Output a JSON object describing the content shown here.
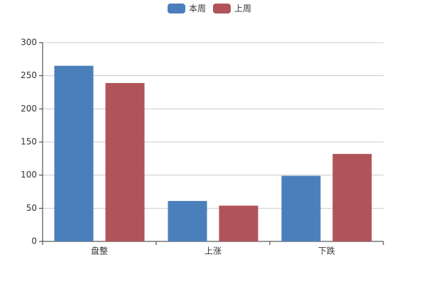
{
  "chart_data": {
    "type": "bar",
    "categories": [
      "盘整",
      "上涨",
      "下跌"
    ],
    "series": [
      {
        "name": "本周",
        "color": "#4b7fbb",
        "values": [
          265,
          61,
          99
        ]
      },
      {
        "name": "上周",
        "color": "#b05459",
        "values": [
          239,
          54,
          132
        ]
      }
    ],
    "ylim": [
      0,
      300
    ],
    "yticks": [
      0,
      50,
      100,
      150,
      200,
      250,
      300
    ],
    "grid": true,
    "legend": "top"
  }
}
